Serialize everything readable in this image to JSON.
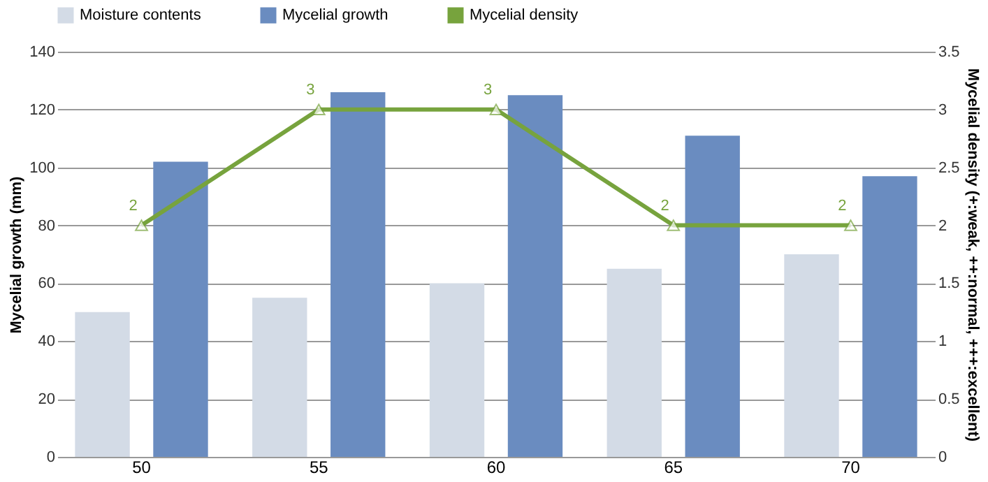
{
  "chart_data": {
    "type": "bar",
    "categories": [
      "50",
      "55",
      "60",
      "65",
      "70"
    ],
    "series": [
      {
        "name": "Moisture contents",
        "color": "#d3dbe6",
        "values": [
          50,
          55,
          60,
          65,
          70
        ]
      },
      {
        "name": "Mycelial growth",
        "color": "#6a8cc0",
        "values": [
          102,
          126,
          125,
          111,
          97
        ]
      },
      {
        "name": "Mycelial density",
        "type": "line",
        "axis": "y2",
        "color": "#77a33d",
        "marker": "triangle",
        "line_style": "solid",
        "values": [
          2,
          3,
          3,
          2,
          2
        ],
        "value_labels": [
          "2",
          "3",
          "3",
          "2",
          "2"
        ]
      }
    ],
    "ylabel": "Mycelial growth (mm)",
    "y2label": "Mycelial density (+:weak, ++:normal, +++:excellent)",
    "ylim": [
      0,
      140
    ],
    "yticks": [
      0,
      20,
      40,
      60,
      80,
      100,
      120,
      140
    ],
    "y2lim": [
      0,
      3.5
    ],
    "y2ticks": [
      0,
      0.5,
      1,
      1.5,
      2,
      2.5,
      3,
      3.5
    ],
    "grid": "y",
    "legend": "top"
  }
}
